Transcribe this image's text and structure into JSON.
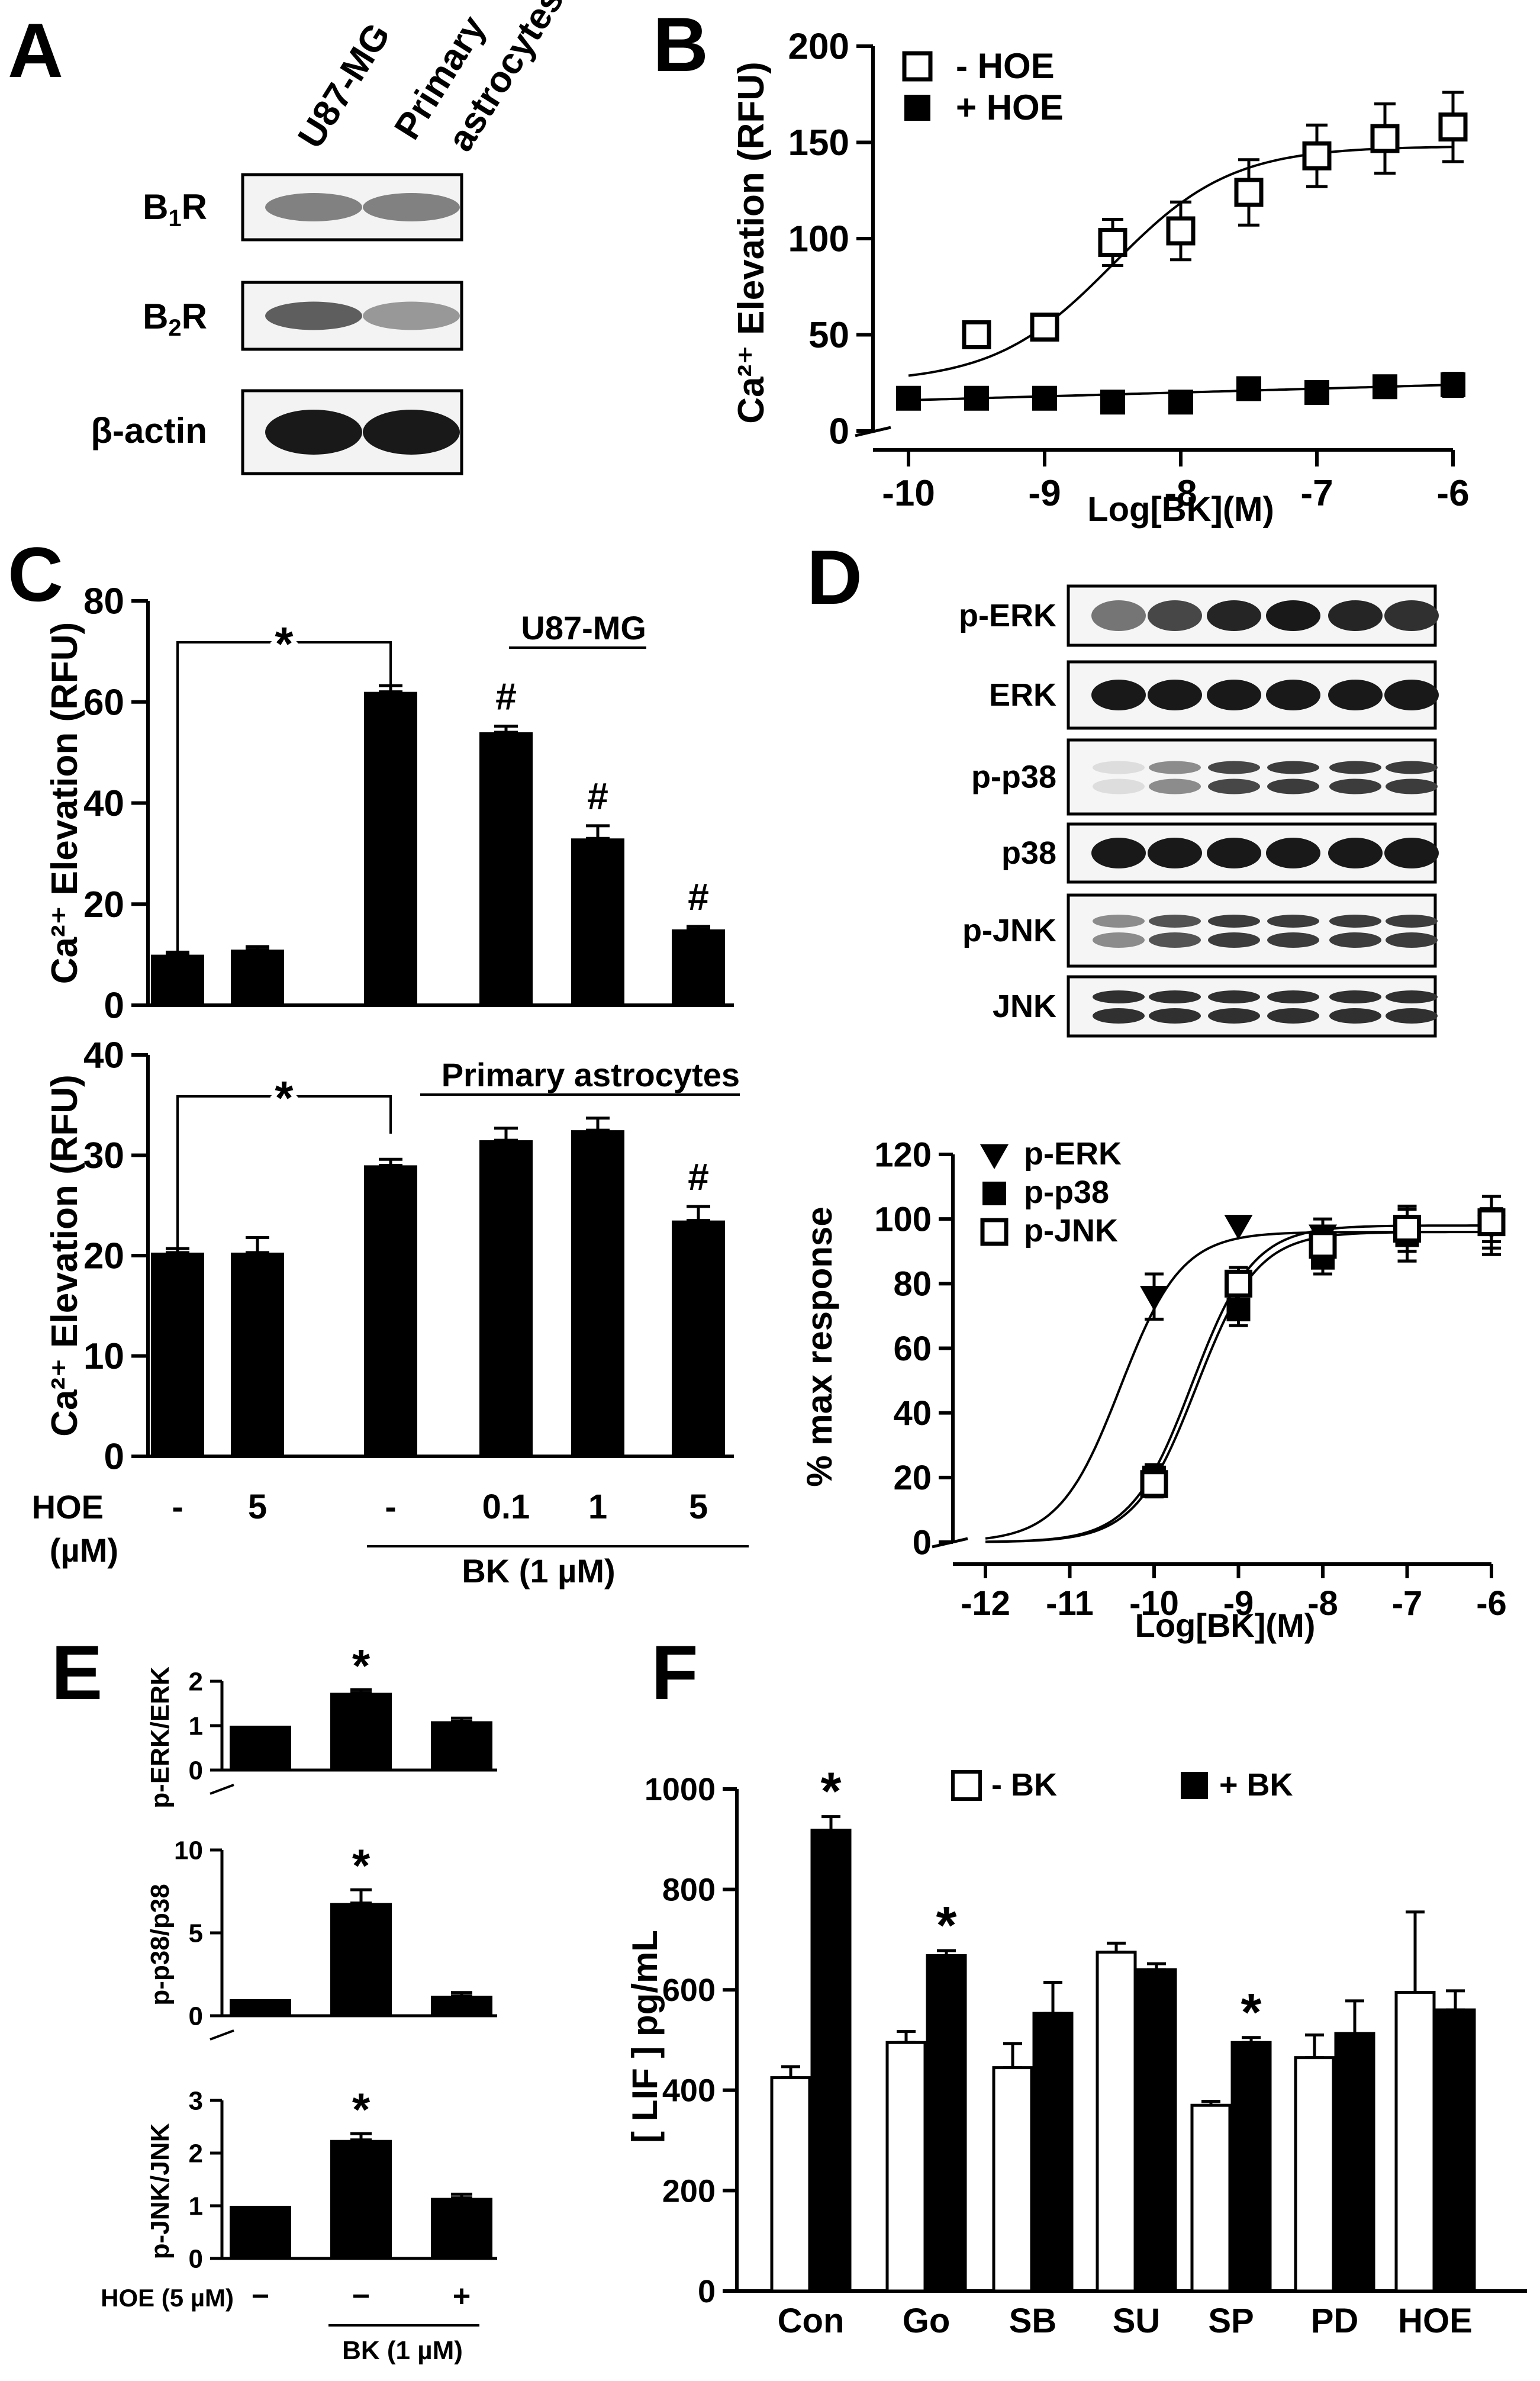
{
  "panel_letters": {
    "A": "A",
    "B": "B",
    "C": "C",
    "D": "D",
    "E": "E",
    "F": "F"
  },
  "panelA": {
    "cell_labels": [
      "U87-MG",
      "Primary astrocytes"
    ],
    "blot_labels": [
      "B1R",
      "B2R",
      "β-actin"
    ],
    "band_intensity": [
      [
        0.55,
        0.55
      ],
      [
        0.7,
        0.45
      ],
      [
        1.0,
        1.0
      ]
    ]
  },
  "panelD_blots": {
    "labels": [
      "p-ERK",
      "ERK",
      "p-p38",
      "p38",
      "p-JNK",
      "JNK"
    ],
    "band_intensity": [
      [
        0.6,
        0.8,
        0.95,
        1.0,
        0.95,
        0.9
      ],
      [
        1,
        1,
        1,
        1,
        1,
        1
      ],
      [
        0.15,
        0.5,
        0.8,
        0.85,
        0.85,
        0.85
      ],
      [
        1,
        1,
        1,
        1,
        1,
        1
      ],
      [
        0.5,
        0.75,
        0.85,
        0.85,
        0.85,
        0.85
      ],
      [
        0.9,
        0.9,
        0.9,
        0.9,
        0.9,
        0.9
      ]
    ]
  },
  "chart_data": [
    {
      "id": "B",
      "type": "scatter",
      "xlabel": "Log[BK](M)",
      "ylabel": "Ca²⁺ Elevation (RFU)",
      "xlim": [
        -10,
        -6
      ],
      "ylim": [
        0,
        200
      ],
      "xticks": [
        -10,
        -9,
        -8,
        -7,
        -6
      ],
      "yticks": [
        0,
        50,
        100,
        150,
        200
      ],
      "series": [
        {
          "name": "- HOE",
          "marker": "open-square",
          "x": [
            -9.5,
            -9,
            -8.5,
            -8,
            -7.5,
            -7,
            -6.5,
            -6
          ],
          "values": [
            50,
            54,
            98,
            104,
            124,
            143,
            152,
            158
          ],
          "errors": [
            4,
            5,
            12,
            15,
            17,
            16,
            18,
            18
          ],
          "fit": {
            "bottom": 25,
            "top": 148,
            "logEC50": -8.5,
            "hill": 1.0
          }
        },
        {
          "name": "+ HOE",
          "marker": "filled-square",
          "x": [
            -10,
            -9.5,
            -9,
            -8.5,
            -8,
            -7.5,
            -7,
            -6.5,
            -6
          ],
          "values": [
            17,
            17,
            17,
            15,
            15,
            22,
            20,
            23,
            24
          ],
          "errors": [
            5,
            4,
            4,
            3,
            3,
            3,
            4,
            5,
            6
          ],
          "fit": {
            "linear": [
              16,
              24
            ]
          }
        }
      ]
    },
    {
      "id": "C-top",
      "type": "bar",
      "title": "U87-MG",
      "ylabel": "Ca²⁺ Elevation (RFU)",
      "ylim": [
        0,
        80
      ],
      "yticks": [
        0,
        20,
        40,
        60,
        80
      ],
      "values": [
        10,
        11,
        62,
        54,
        33,
        15
      ],
      "errors": [
        0.5,
        0.6,
        1.2,
        1.2,
        2.5,
        0.6
      ],
      "annotations": [
        "",
        "",
        "",
        "#",
        "#",
        "#"
      ],
      "significance": "*"
    },
    {
      "id": "C-bottom",
      "type": "bar",
      "title": "Primary astrocytes",
      "ylabel": "Ca²⁺ Elevation (RFU)",
      "ylim": [
        0,
        40
      ],
      "yticks": [
        0,
        10,
        20,
        30,
        40
      ],
      "values": [
        20.3,
        20.3,
        29,
        31.5,
        32.5,
        23.5
      ],
      "errors": [
        0.4,
        1.5,
        0.6,
        1.2,
        1.2,
        1.4
      ],
      "annotations": [
        "",
        "",
        "",
        "",
        "",
        "#"
      ],
      "significance": "*",
      "x_row_label": "HOE",
      "x_row_unit": "(µM)",
      "categories": [
        "-",
        "5",
        "-",
        "0.1",
        "1",
        "5"
      ],
      "group_label": "BK (1 µM)"
    },
    {
      "id": "D-curve",
      "type": "scatter",
      "xlabel": "Log[BK](M)",
      "ylabel": "% max response",
      "xlim": [
        -12,
        -6
      ],
      "ylim": [
        0,
        120
      ],
      "xticks": [
        -12,
        -11,
        -10,
        -9,
        -8,
        -7,
        -6
      ],
      "yticks": [
        0,
        20,
        40,
        60,
        80,
        100,
        120
      ],
      "series": [
        {
          "name": "p-ERK",
          "marker": "filled-triangle-down",
          "x": [
            -10,
            -9,
            -8,
            -7,
            -6
          ],
          "values": [
            76,
            98,
            95,
            95,
            98
          ],
          "errors": [
            7,
            0,
            5,
            8,
            9
          ],
          "fit": {
            "bottom": 0,
            "top": 96,
            "logEC50": -10.4,
            "hill": 1.2
          }
        },
        {
          "name": "p-p38",
          "marker": "filled-square",
          "x": [
            -10,
            -9,
            -8,
            -7,
            -6
          ],
          "values": [
            20,
            72,
            88,
            95,
            100
          ],
          "errors": [
            4,
            5,
            5,
            8,
            7
          ],
          "fit": {
            "bottom": 0,
            "top": 96,
            "logEC50": -9.5,
            "hill": 1.2
          }
        },
        {
          "name": "p-JNK",
          "marker": "open-square",
          "x": [
            -10,
            -9,
            -8,
            -7,
            -6
          ],
          "values": [
            18,
            80,
            92,
            97,
            99
          ],
          "errors": [
            4,
            5,
            5,
            7,
            8
          ],
          "fit": {
            "bottom": 0,
            "top": 98,
            "logEC50": -9.55,
            "hill": 1.2
          }
        }
      ]
    },
    {
      "id": "E-1",
      "type": "bar",
      "ylabel": "p-ERK/ERK",
      "ylim": [
        0,
        2
      ],
      "yticks": [
        0,
        1,
        2
      ],
      "values": [
        1,
        1.74,
        1.1
      ],
      "errors": [
        0,
        0.07,
        0.07
      ],
      "annotations": [
        "",
        "*",
        ""
      ]
    },
    {
      "id": "E-2",
      "type": "bar",
      "ylabel": "p-p38/p38",
      "ylim": [
        0,
        10
      ],
      "yticks": [
        0,
        5,
        10
      ],
      "values": [
        1,
        6.8,
        1.2
      ],
      "errors": [
        0,
        0.8,
        0.2
      ],
      "annotations": [
        "",
        "*",
        ""
      ]
    },
    {
      "id": "E-3",
      "type": "bar",
      "ylabel": "p-JNK/JNK",
      "ylim": [
        0,
        3
      ],
      "yticks": [
        0,
        1,
        2,
        3
      ],
      "values": [
        1,
        2.25,
        1.15
      ],
      "errors": [
        0,
        0.12,
        0.07
      ],
      "annotations": [
        "",
        "*",
        ""
      ],
      "x_row_label": "HOE (5 µM)",
      "categories": [
        "−",
        "−",
        "+"
      ],
      "group_label": "BK (1 µM)"
    },
    {
      "id": "F",
      "type": "bar",
      "ylabel": "[ LIF ] pg/mL",
      "ylim": [
        0,
        1000
      ],
      "yticks": [
        0,
        200,
        400,
        600,
        800,
        1000
      ],
      "categories": [
        "Con",
        "Go",
        "SB",
        "SU",
        "SP",
        "PD",
        "HOE"
      ],
      "series": [
        {
          "name": "- BK",
          "values": [
            425,
            495,
            445,
            675,
            370,
            465,
            595
          ],
          "errors": [
            22,
            22,
            48,
            18,
            8,
            45,
            160
          ]
        },
        {
          "name": "+ BK",
          "values": [
            918,
            668,
            553,
            640,
            495,
            513,
            560
          ],
          "errors": [
            27,
            10,
            62,
            12,
            10,
            65,
            38
          ]
        }
      ],
      "annotations_plus": [
        "*",
        "*",
        "",
        "",
        "*",
        "",
        ""
      ]
    }
  ]
}
